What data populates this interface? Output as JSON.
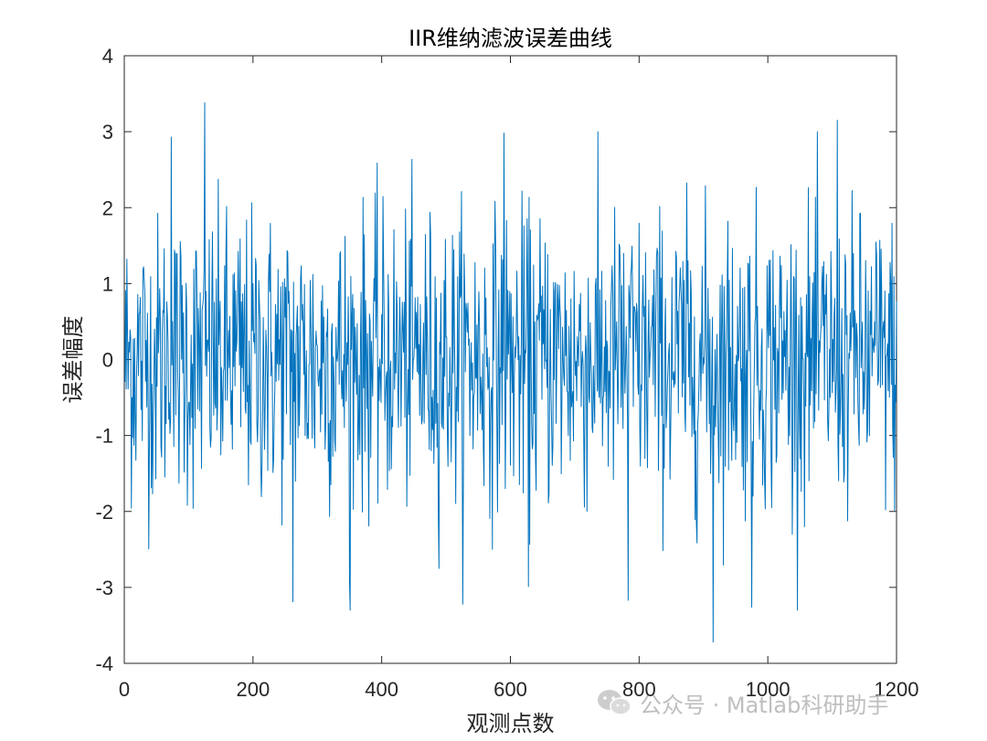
{
  "chart_data": {
    "type": "line",
    "title": "IIR维纳滤波误差曲线",
    "xlabel": "观测点数",
    "ylabel": "误差幅度",
    "xlim": [
      0,
      1200
    ],
    "ylim": [
      -4,
      4
    ],
    "xticks": [
      0,
      200,
      400,
      600,
      800,
      1000,
      1200
    ],
    "yticks": [
      -4,
      -3,
      -2,
      -1,
      0,
      1,
      2,
      3,
      4
    ],
    "grid": false,
    "legend": "none",
    "line_color": "#0072BD",
    "series": [
      {
        "x_start": 1,
        "x_step": 1,
        "n_points": 1200,
        "envelope_note_peaks": [
          {
            "x": 125,
            "y": 3.38
          },
          {
            "x": 1108,
            "y": 3.15
          },
          {
            "x": 590,
            "y": 2.98
          },
          {
            "x": 73,
            "y": 2.93
          },
          {
            "x": 915,
            "y": -3.72
          },
          {
            "x": 975,
            "y": -3.26
          },
          {
            "x": 262,
            "y": -3.19
          },
          {
            "x": 783,
            "y": -3.17
          },
          {
            "x": 350,
            "y": -2.93
          },
          {
            "x": 628,
            "y": -2.99
          }
        ],
        "std": 0.95,
        "mean": 0.0
      }
    ]
  },
  "watermark": {
    "text": "公众号 · Matlab科研助手",
    "logo_icon": "wechat-icon"
  }
}
